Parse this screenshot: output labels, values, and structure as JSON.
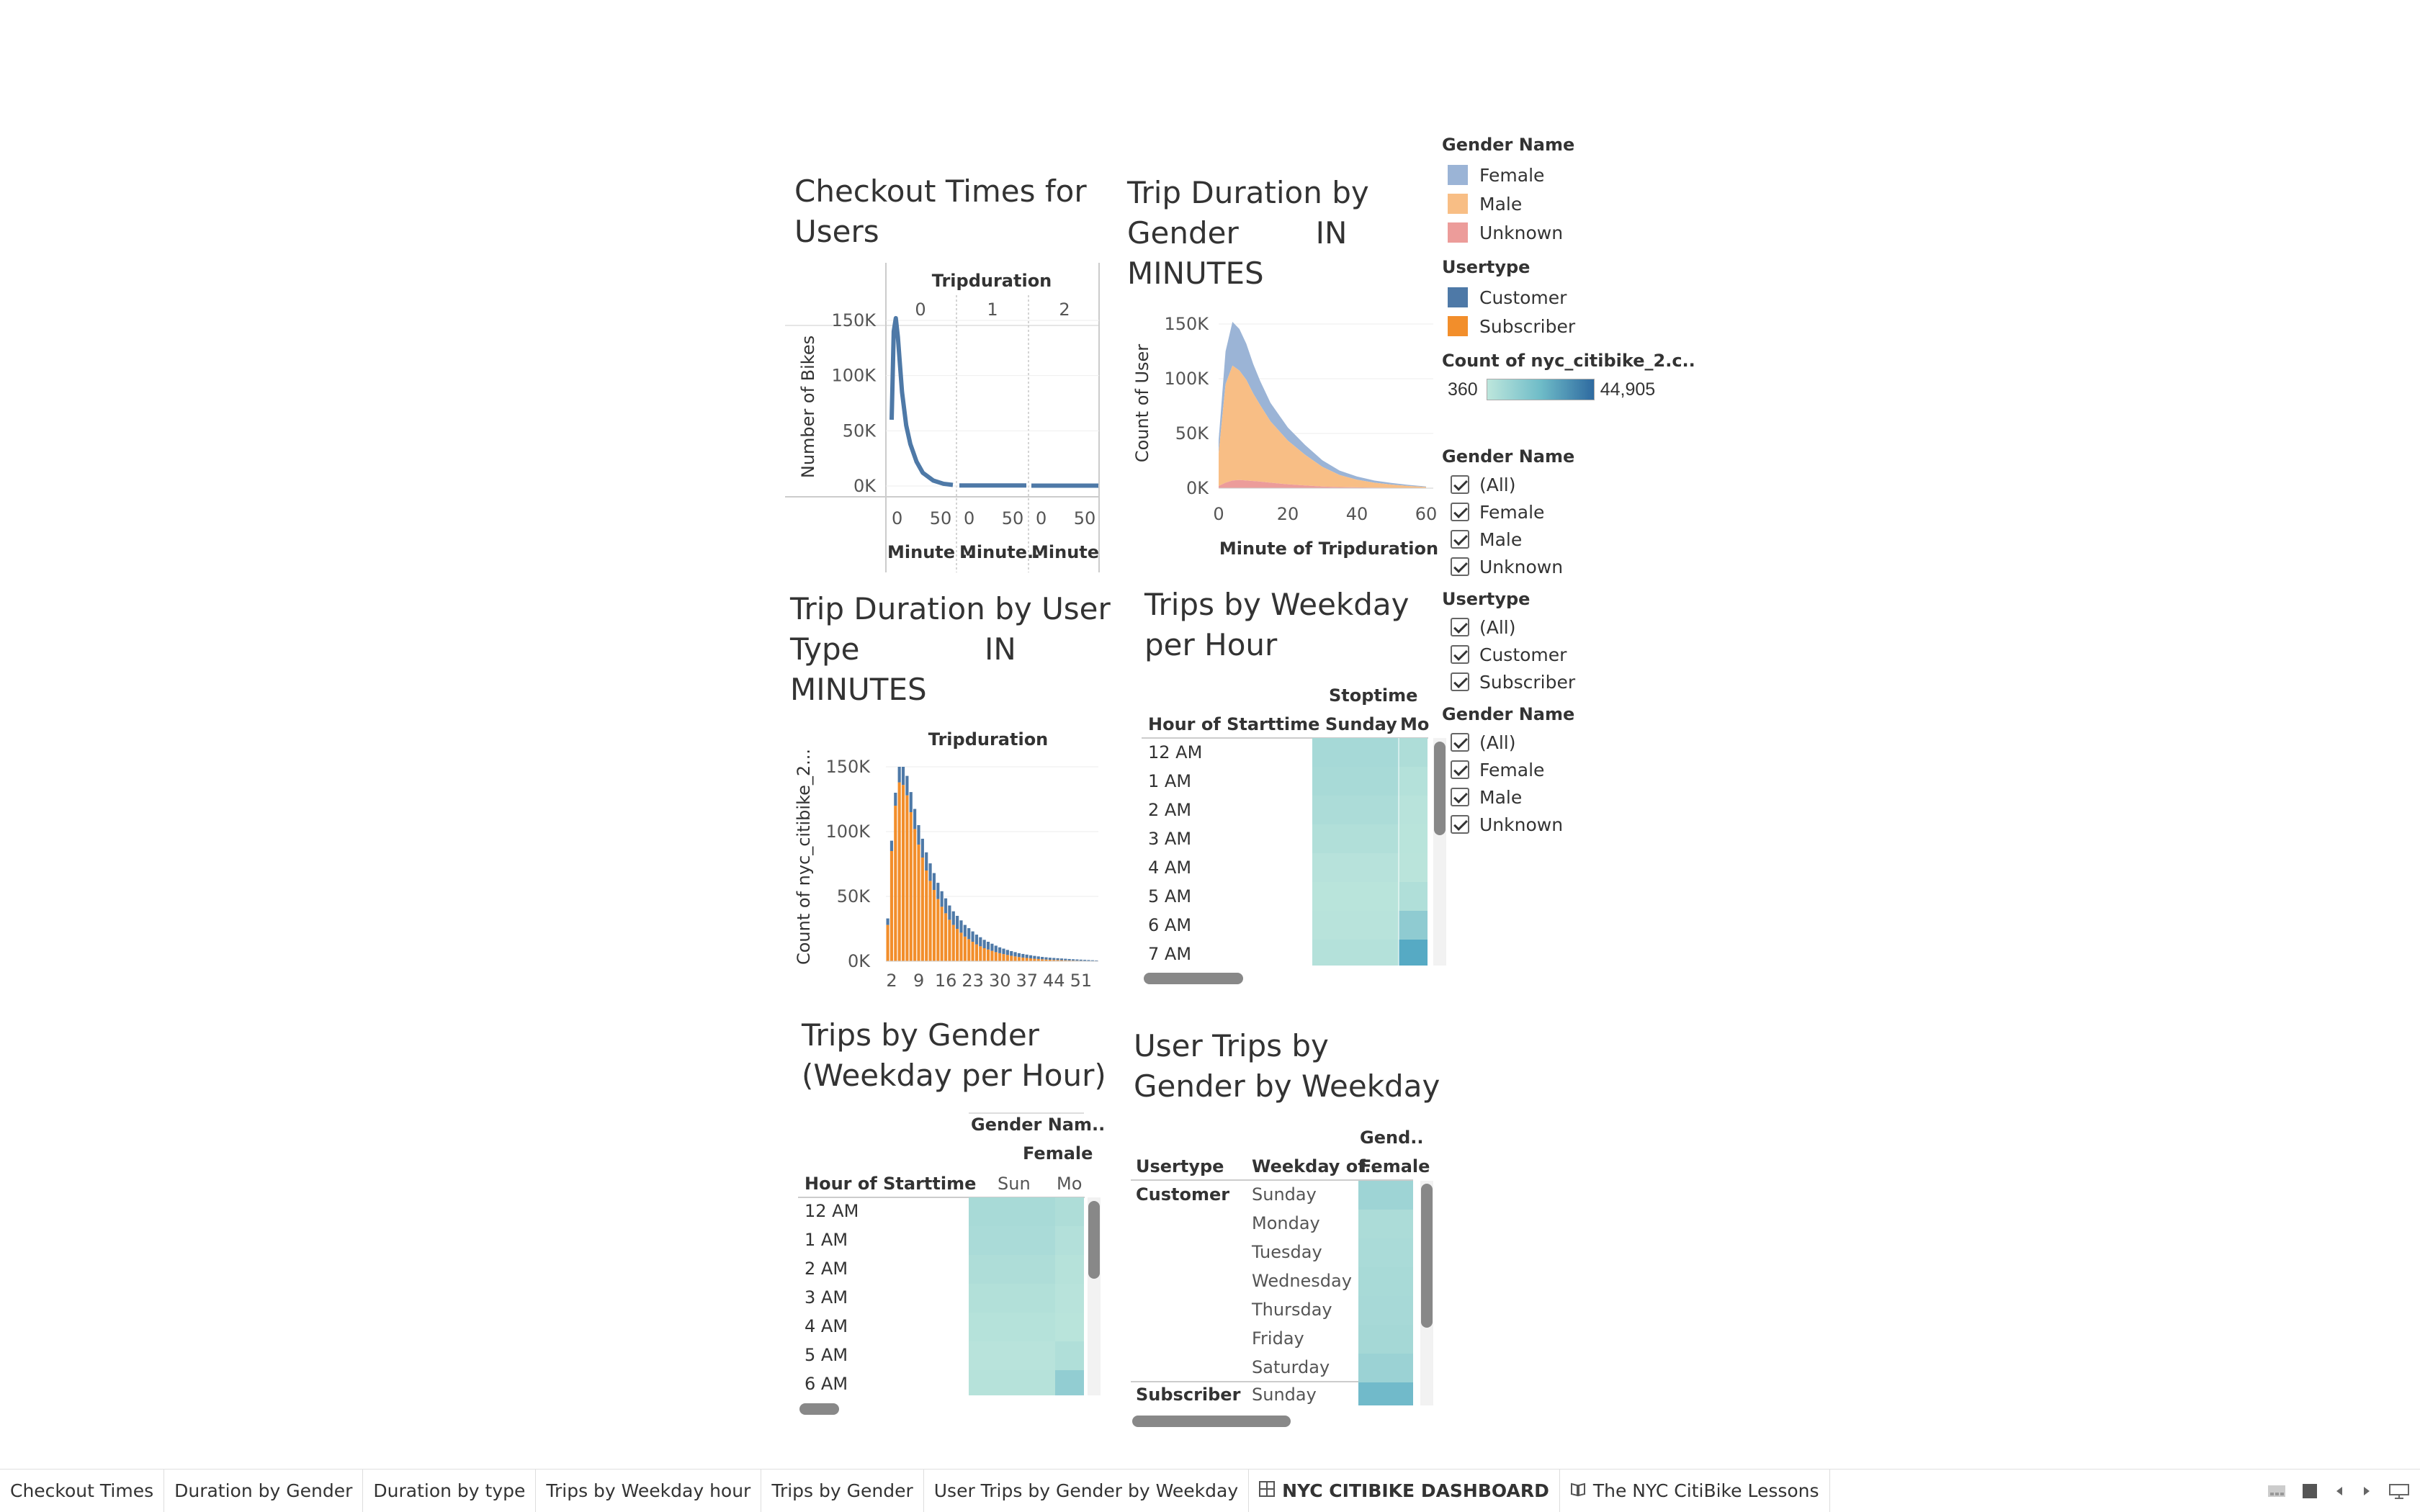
{
  "sheets": {
    "checkout": {
      "title_l1": "Checkout Times for",
      "title_l2": "Users",
      "col_header": "Tripduration",
      "panels": [
        "0",
        "1",
        "2"
      ],
      "y_label": "Number of Bikes",
      "y_ticks": [
        "150K",
        "100K",
        "50K",
        "0K"
      ],
      "x_ticks": [
        "0",
        "50"
      ],
      "x_labels": [
        "Minute ..",
        "Minute..",
        "Minute .."
      ]
    },
    "gender_duration": {
      "title_l1": "Trip Duration by",
      "title_l2": "Gender        IN",
      "title_l3": "MINUTES",
      "y_label": "Count of User",
      "y_ticks": [
        "150K",
        "100K",
        "50K",
        "0K"
      ],
      "x_ticks": [
        "0",
        "20",
        "40",
        "60"
      ],
      "x_label": "Minute of Tripduration"
    },
    "type_duration": {
      "title_l1": "Trip Duration by User",
      "title_l2": "Type             IN",
      "title_l3": "MINUTES",
      "col_header": "Tripduration",
      "y_label": "Count of nyc_citibike_2...",
      "y_ticks": [
        "150K",
        "100K",
        "50K",
        "0K"
      ],
      "x_ticks": [
        "2",
        "9",
        "16",
        "23",
        "30",
        "37",
        "44",
        "51"
      ]
    },
    "weekday_hour": {
      "title_l1": "Trips by Weekday",
      "title_l2": "per Hour",
      "col_header": "Stoptime",
      "row_header": "Hour of Starttime",
      "cols": [
        "Sunday",
        "Mo"
      ],
      "rows": [
        "12 AM",
        "1 AM",
        "2 AM",
        "3 AM",
        "4 AM",
        "5 AM",
        "6 AM",
        "7 AM"
      ]
    },
    "trips_gender": {
      "title_l1": "Trips by Gender",
      "title_l2": "(Weekday per Hour)",
      "col_header": "Gender Nam..",
      "col_sub": "Female",
      "row_header": "Hour of Starttime",
      "cols": [
        "Sun",
        "Mo"
      ],
      "rows": [
        "12 AM",
        "1 AM",
        "2 AM",
        "3 AM",
        "4 AM",
        "5 AM",
        "6 AM"
      ]
    },
    "user_trips": {
      "title_l1": "User Trips by",
      "title_l2": "Gender by Weekday",
      "col_header": "Gend..",
      "col_sub": "Female",
      "h_usertype": "Usertype",
      "h_weekday": "Weekday of..",
      "group1": "Customer",
      "group2": "Subscriber",
      "days": [
        "Sunday",
        "Monday",
        "Tuesday",
        "Wednesday",
        "Thursday",
        "Friday",
        "Saturday"
      ],
      "last_day": "Sunday"
    }
  },
  "legends": {
    "gender_name": {
      "title": "Gender Name",
      "items": [
        {
          "label": "Female",
          "color": "#9bb4d6"
        },
        {
          "label": "Male",
          "color": "#f8be85"
        },
        {
          "label": "Unknown",
          "color": "#ec9c9a"
        }
      ]
    },
    "usertype": {
      "title": "Usertype",
      "items": [
        {
          "label": "Customer",
          "color": "#4e79a7"
        },
        {
          "label": "Subscriber",
          "color": "#f28e2b"
        }
      ]
    },
    "count": {
      "title": "Count of nyc_citibike_2.c..",
      "min": "360",
      "max": "44,905"
    }
  },
  "filters": [
    {
      "title": "Gender Name",
      "items": [
        "(All)",
        "Female",
        "Male",
        "Unknown"
      ]
    },
    {
      "title": "Usertype",
      "items": [
        "(All)",
        "Customer",
        "Subscriber"
      ]
    },
    {
      "title": "Gender Name",
      "items": [
        "(All)",
        "Female",
        "Male",
        "Unknown"
      ]
    }
  ],
  "tabs": [
    {
      "label": "Checkout Times",
      "icon": ""
    },
    {
      "label": "Duration by Gender",
      "icon": ""
    },
    {
      "label": "Duration by type",
      "icon": ""
    },
    {
      "label": "Trips by Weekday hour",
      "icon": ""
    },
    {
      "label": "Trips by Gender",
      "icon": ""
    },
    {
      "label": "User Trips by Gender by Weekday",
      "icon": ""
    },
    {
      "label": "NYC CITIBIKE DASHBOARD",
      "icon": "dashboard-icon",
      "active": true
    },
    {
      "label": "The NYC CitiBike Lessons",
      "icon": "story-icon"
    }
  ],
  "chart_data": [
    {
      "type": "line",
      "title": "Checkout Times for Users",
      "ylabel": "Number of Bikes",
      "ylim": [
        0,
        150000
      ],
      "panels": [
        "0",
        "1",
        "2"
      ],
      "x_panel_0": [
        0,
        2,
        4,
        6,
        8,
        10,
        14,
        18,
        24,
        30,
        40,
        50,
        59
      ],
      "y_panel_0": [
        60000,
        140000,
        152000,
        135000,
        110000,
        85000,
        55000,
        38000,
        22000,
        12000,
        5000,
        2000,
        1000
      ],
      "panel_1_value": 500,
      "panel_2_value": 300
    },
    {
      "type": "area",
      "title": "Trip Duration by Gender IN MINUTES",
      "xlabel": "Minute of Tripduration",
      "ylabel": "Count of User",
      "ylim": [
        0,
        150000
      ],
      "x": [
        0,
        2,
        4,
        6,
        8,
        10,
        12,
        15,
        20,
        25,
        30,
        35,
        40,
        45,
        50,
        55,
        60
      ],
      "series": [
        {
          "name": "Female",
          "values": [
            12000,
            30000,
            40000,
            38000,
            33000,
            27000,
            22000,
            17000,
            12000,
            9000,
            6000,
            4000,
            3000,
            2000,
            1500,
            1000,
            500
          ]
        },
        {
          "name": "Male",
          "values": [
            30000,
            90000,
            105000,
            100000,
            92000,
            80000,
            70000,
            56000,
            40000,
            28000,
            18000,
            11000,
            7000,
            4500,
            3000,
            1800,
            1000
          ]
        },
        {
          "name": "Unknown",
          "values": [
            2000,
            5000,
            7000,
            7500,
            7000,
            6500,
            6000,
            5000,
            3500,
            2500,
            1500,
            1000,
            700,
            500,
            300,
            200,
            100
          ]
        }
      ]
    },
    {
      "type": "bar",
      "title": "Trip Duration by User Type IN MINUTES",
      "ylabel": "Count of nyc_citibike_2...",
      "ylim": [
        0,
        150000
      ],
      "categories": [
        1,
        2,
        3,
        4,
        5,
        6,
        7,
        8,
        9,
        10,
        11,
        12,
        13,
        14,
        15,
        16,
        17,
        18,
        19,
        20,
        21,
        22,
        23,
        24,
        25,
        26,
        27,
        28,
        29,
        30,
        31,
        32,
        33,
        34,
        35,
        36,
        37,
        38,
        39,
        40,
        41,
        42,
        43,
        44,
        45,
        46,
        47,
        48,
        49,
        50,
        51,
        52,
        53,
        54,
        55
      ],
      "series": [
        {
          "name": "Subscriber",
          "values": [
            28000,
            85000,
            120000,
            138000,
            136000,
            128000,
            115000,
            102000,
            90000,
            80000,
            70000,
            62000,
            55000,
            48000,
            42000,
            37000,
            32000,
            28000,
            25000,
            22000,
            19000,
            17000,
            15000,
            13000,
            11500,
            10000,
            9000,
            8000,
            7000,
            6200,
            5500,
            4800,
            4200,
            3700,
            3200,
            2800,
            2500,
            2200,
            1900,
            1700,
            1500,
            1300,
            1100,
            1000,
            900,
            800,
            700,
            600,
            500,
            450,
            400,
            350,
            300,
            250,
            200
          ]
        },
        {
          "name": "Customer",
          "values": [
            5000,
            8000,
            10000,
            12000,
            14000,
            15000,
            15500,
            15500,
            15000,
            14500,
            14000,
            13500,
            13000,
            12500,
            12000,
            11500,
            11000,
            10500,
            10000,
            9500,
            9000,
            8500,
            8000,
            7500,
            7000,
            6500,
            6000,
            5500,
            5000,
            4500,
            4200,
            3900,
            3600,
            3300,
            3000,
            2800,
            2600,
            2400,
            2200,
            2000,
            1800,
            1700,
            1600,
            1500,
            1400,
            1300,
            1200,
            1100,
            1000,
            900,
            800,
            700,
            600,
            500,
            400
          ]
        }
      ]
    },
    {
      "type": "heatmap",
      "title": "Trips by Weekday per Hour",
      "rows": [
        "12 AM",
        "1 AM",
        "2 AM",
        "3 AM",
        "4 AM",
        "5 AM",
        "6 AM",
        "7 AM"
      ],
      "cols": [
        "Sunday",
        "Mo"
      ],
      "values": [
        [
          9000,
          6000
        ],
        [
          8000,
          3500
        ],
        [
          6500,
          2000
        ],
        [
          4500,
          1500
        ],
        [
          2500,
          1200
        ],
        [
          1500,
          5000
        ],
        [
          2000,
          18000
        ],
        [
          3500,
          40000
        ]
      ]
    },
    {
      "type": "heatmap",
      "title": "Trips by Gender (Weekday per Hour)",
      "rows": [
        "12 AM",
        "1 AM",
        "2 AM",
        "3 AM",
        "4 AM",
        "5 AM",
        "6 AM"
      ],
      "cols": [
        "Sun",
        "Mo"
      ],
      "values": [
        [
          2500,
          1800
        ],
        [
          2200,
          1200
        ],
        [
          1800,
          800
        ],
        [
          1300,
          600
        ],
        [
          900,
          500
        ],
        [
          600,
          1500
        ],
        [
          800,
          5000
        ]
      ]
    },
    {
      "type": "heatmap",
      "title": "User Trips by Gender by Weekday",
      "rows": [
        "Customer Sunday",
        "Customer Monday",
        "Customer Tuesday",
        "Customer Wednesday",
        "Customer Thursday",
        "Customer Friday",
        "Customer Saturday",
        "Subscriber Sunday"
      ],
      "cols": [
        "Female"
      ],
      "values": [
        [
          9000
        ],
        [
          5000
        ],
        [
          5500
        ],
        [
          6000
        ],
        [
          6500
        ],
        [
          7000
        ],
        [
          10000
        ],
        [
          22000
        ]
      ]
    }
  ]
}
